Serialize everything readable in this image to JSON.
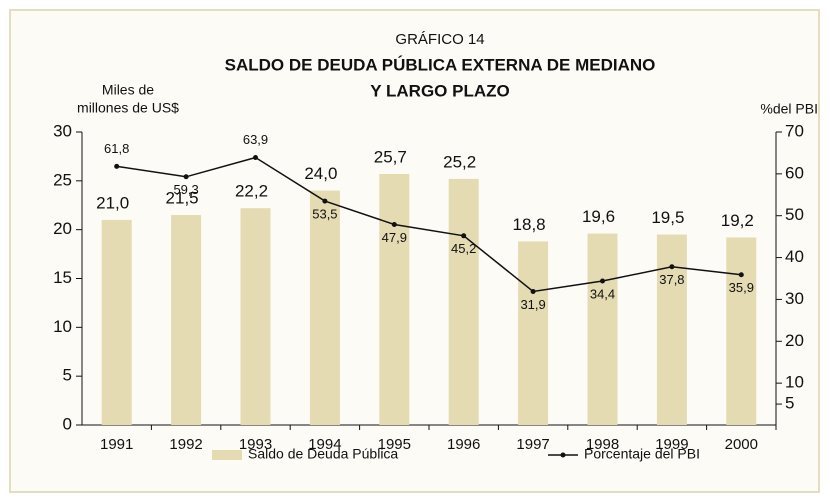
{
  "chart_data": {
    "type": "bar",
    "title_prefix": "GRÁFICO 14",
    "title": [
      "SALDO DE DEUDA PÚBLICA EXTERNA DE MEDIANO",
      "Y LARGO PLAZO"
    ],
    "y_label": [
      "Miles de",
      "millones de US$"
    ],
    "y2_label": "%del PBI",
    "categories": [
      "1991",
      "1992",
      "1993",
      "1994",
      "1995",
      "1996",
      "1997",
      "1998",
      "1999",
      "2000"
    ],
    "series": [
      {
        "name": "Saldo de Deuda Pública",
        "type": "bar",
        "color": "#e4dbb2",
        "values": [
          21.0,
          21.5,
          22.2,
          24.0,
          25.7,
          25.2,
          18.8,
          19.6,
          19.5,
          19.2
        ],
        "value_labels": [
          "21,0",
          "21,5",
          "22,2",
          "24,0",
          "25,7",
          "25,2",
          "18,8",
          "19,6",
          "19,5",
          "19,2"
        ]
      },
      {
        "name": "Porcentaje del PBI",
        "type": "line",
        "axis": "y2",
        "color": "#111111",
        "values": [
          61.8,
          59.3,
          63.9,
          53.5,
          47.9,
          45.2,
          31.9,
          34.4,
          37.8,
          35.9
        ],
        "value_labels": [
          "61,8",
          "59,3",
          "63,9",
          "53,5",
          "47,9",
          "45,2",
          "31,9",
          "34,4",
          "37,8",
          "35,9"
        ]
      }
    ],
    "ylim": [
      0,
      30
    ],
    "yticks": [
      0,
      5,
      10,
      15,
      20,
      25,
      30
    ],
    "y2lim": [
      0,
      70
    ],
    "y2ticks": [
      5,
      10,
      20,
      30,
      40,
      50,
      60,
      70
    ]
  }
}
